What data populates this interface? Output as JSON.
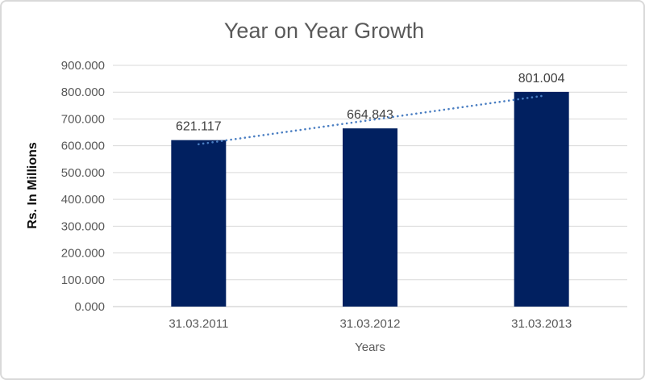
{
  "chart_data": {
    "type": "bar",
    "title": "Year on Year Growth",
    "xlabel": "Years",
    "ylabel": "Rs. In Millions",
    "categories": [
      "31.03.2011",
      "31.03.2012",
      "31.03.2013"
    ],
    "values": [
      621.117,
      664.843,
      801.004
    ],
    "data_labels": [
      "621.117",
      "664.843",
      "801.004"
    ],
    "ylim": [
      0,
      900
    ],
    "ytick_values": [
      0,
      100,
      200,
      300,
      400,
      500,
      600,
      700,
      800,
      900
    ],
    "ytick_labels": [
      "0.000",
      "100.000",
      "200.000",
      "300.000",
      "400.000",
      "500.000",
      "600.000",
      "700.000",
      "800.000",
      "900.000"
    ],
    "grid": true,
    "legend": "none",
    "trendline": {
      "type": "linear",
      "style": "dotted"
    },
    "colors": {
      "bar": "#012060",
      "trendline": "#4a7ec2",
      "gridline": "#d9d9d9",
      "axis_line": "#c6c6c6",
      "title": "#595959",
      "tick_label": "#595959",
      "data_label": "#404040",
      "axis_title": "#595959",
      "y_axis_title": "#0d0d0d",
      "background": "#ffffff",
      "border": "#d9d9d9"
    }
  }
}
